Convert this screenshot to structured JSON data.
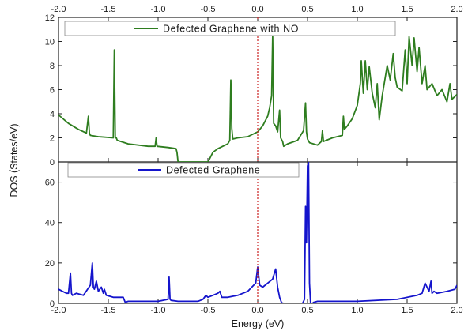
{
  "chart_data": {
    "type": "line",
    "xlabel": "Energy (eV)",
    "ylabel": "DOS (States/eV)",
    "xlim": [
      -2.0,
      2.0
    ],
    "x_ticks": [
      "-2.0",
      "-1.5",
      "-1.0",
      "-0.5",
      "0.0",
      "0.5",
      "1.0",
      "1.5",
      "2.0"
    ],
    "x_ticks_top": [
      "-2.0",
      "-1.5",
      "-1.0",
      "-0.5",
      "0.0",
      "0.5",
      "1.0",
      "1.5",
      "2.0"
    ],
    "fermi_level": 0.0,
    "fermi_color": "#cc2222",
    "panels": [
      {
        "name": "top",
        "legend": "Defected Graphene with NO",
        "color": "#2e7d1f",
        "ylim": [
          0,
          12
        ],
        "y_ticks": [
          "0",
          "2",
          "4",
          "6",
          "8",
          "10",
          "12"
        ],
        "series": {
          "x": [
            -2.0,
            -1.9,
            -1.8,
            -1.72,
            -1.7,
            -1.69,
            -1.68,
            -1.6,
            -1.45,
            -1.44,
            -1.43,
            -1.42,
            -1.41,
            -1.3,
            -1.1,
            -1.03,
            -1.02,
            -1.01,
            -0.9,
            -0.82,
            -0.81,
            -0.8,
            -0.5,
            -0.48,
            -0.45,
            -0.4,
            -0.3,
            -0.28,
            -0.27,
            -0.26,
            -0.25,
            -0.2,
            -0.1,
            0.0,
            0.05,
            0.1,
            0.12,
            0.14,
            0.15,
            0.16,
            0.18,
            0.2,
            0.22,
            0.23,
            0.25,
            0.26,
            0.3,
            0.4,
            0.46,
            0.48,
            0.49,
            0.5,
            0.52,
            0.6,
            0.64,
            0.65,
            0.66,
            0.75,
            0.85,
            0.86,
            0.87,
            0.9,
            0.95,
            1.0,
            1.03,
            1.04,
            1.06,
            1.08,
            1.1,
            1.12,
            1.15,
            1.18,
            1.2,
            1.22,
            1.25,
            1.3,
            1.33,
            1.36,
            1.38,
            1.4,
            1.45,
            1.48,
            1.5,
            1.52,
            1.55,
            1.57,
            1.6,
            1.62,
            1.65,
            1.68,
            1.7,
            1.75,
            1.8,
            1.85,
            1.9,
            1.93,
            1.95,
            2.0
          ],
          "y": [
            3.9,
            3.2,
            2.7,
            2.4,
            3.8,
            2.4,
            2.2,
            2.1,
            2.0,
            9.3,
            2.0,
            2.0,
            1.8,
            1.5,
            1.3,
            1.3,
            2.0,
            1.3,
            1.2,
            1.1,
            0.8,
            0,
            0,
            0.3,
            0.8,
            1.1,
            1.5,
            1.8,
            6.8,
            2.8,
            1.9,
            2.0,
            2.1,
            2.5,
            3.0,
            3.8,
            4.5,
            5.5,
            10.4,
            3.2,
            3.0,
            2.5,
            4.3,
            2.0,
            1.7,
            1.3,
            1.5,
            1.8,
            2.6,
            4.9,
            2.5,
            1.9,
            1.6,
            1.4,
            1.7,
            2.6,
            1.7,
            2.0,
            2.2,
            3.8,
            2.7,
            3.0,
            3.6,
            4.7,
            6.5,
            8.4,
            5.7,
            8.4,
            6.0,
            7.9,
            5.7,
            4.5,
            6.5,
            3.5,
            5.5,
            8.0,
            6.8,
            9.0,
            7.0,
            6.2,
            5.9,
            9.3,
            6.5,
            10.4,
            8.0,
            10.3,
            7.5,
            9.5,
            6.5,
            8.0,
            6.0,
            6.5,
            5.5,
            6.0,
            5.0,
            6.5,
            5.2,
            5.6
          ]
        }
      },
      {
        "name": "bottom",
        "legend": "Defected Graphene",
        "color": "#1414cc",
        "ylim": [
          0,
          70
        ],
        "y_ticks": [
          "0",
          "20",
          "40",
          "60"
        ],
        "series": {
          "x": [
            -2.0,
            -1.96,
            -1.92,
            -1.9,
            -1.88,
            -1.87,
            -1.86,
            -1.82,
            -1.75,
            -1.68,
            -1.66,
            -1.65,
            -1.64,
            -1.62,
            -1.6,
            -1.57,
            -1.55,
            -1.54,
            -1.52,
            -1.45,
            -1.35,
            -1.33,
            -1.3,
            -1.0,
            -0.9,
            -0.89,
            -0.88,
            -0.87,
            -0.8,
            -0.6,
            -0.55,
            -0.52,
            -0.5,
            -0.45,
            -0.4,
            -0.38,
            -0.36,
            -0.3,
            -0.2,
            -0.1,
            -0.02,
            0.0,
            0.02,
            0.05,
            0.1,
            0.15,
            0.18,
            0.2,
            0.22,
            0.24,
            0.26,
            0.3,
            0.45,
            0.47,
            0.48,
            0.49,
            0.5,
            0.51,
            0.52,
            0.53,
            0.54,
            0.55,
            0.56,
            0.6,
            1.0,
            1.4,
            1.6,
            1.65,
            1.68,
            1.7,
            1.72,
            1.74,
            1.75,
            1.77,
            1.8,
            1.9,
            1.98,
            2.0
          ],
          "y": [
            7,
            6,
            5,
            5,
            15,
            5,
            4,
            5,
            4,
            9,
            20,
            8,
            7,
            11,
            6,
            8,
            5,
            7,
            4,
            3,
            3,
            0.5,
            1,
            1,
            2,
            13,
            2,
            1.5,
            1,
            1,
            2,
            4,
            3,
            4,
            5,
            6,
            3,
            3,
            4,
            6,
            10,
            18,
            9,
            8,
            10,
            12,
            17,
            8,
            3,
            0.3,
            0,
            0,
            0,
            2,
            48,
            30,
            68,
            70,
            10,
            0.5,
            0,
            0,
            0.5,
            1,
            1,
            2,
            4,
            5,
            10,
            8,
            6,
            11,
            5,
            6,
            5,
            6,
            7,
            9
          ]
        }
      }
    ]
  }
}
